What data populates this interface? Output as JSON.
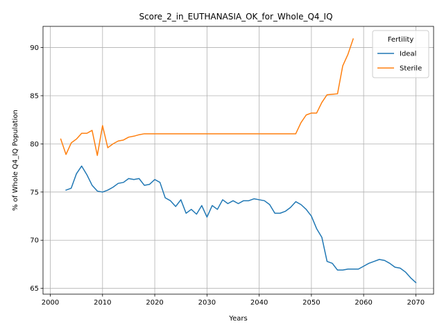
{
  "chart_data": {
    "type": "line",
    "title": "Score_2_in_EUTHANASIA_OK_for_Whole_Q4_IQ",
    "xlabel": "Years",
    "ylabel": "% of Whole Q4_IQ Population",
    "xlim": [
      1998.6,
      2073.4
    ],
    "ylim": [
      64.4,
      92.2
    ],
    "xticks": [
      2000,
      2010,
      2020,
      2030,
      2040,
      2050,
      2060,
      2070
    ],
    "yticks": [
      65,
      70,
      75,
      80,
      85,
      90
    ],
    "grid": true,
    "legend": {
      "title": "Fertility",
      "position": "top-right"
    },
    "series": [
      {
        "name": "Ideal",
        "color": "#1f77b4",
        "x": [
          2003,
          2004,
          2005,
          2006,
          2007,
          2008,
          2009,
          2010,
          2011,
          2012,
          2013,
          2014,
          2015,
          2016,
          2017,
          2018,
          2019,
          2020,
          2021,
          2022,
          2023,
          2024,
          2025,
          2026,
          2027,
          2028,
          2029,
          2030,
          2031,
          2032,
          2033,
          2034,
          2035,
          2036,
          2037,
          2038,
          2039,
          2040,
          2041,
          2042,
          2043,
          2044,
          2045,
          2046,
          2047,
          2048,
          2049,
          2050,
          2051,
          2052,
          2053,
          2054,
          2055,
          2056,
          2057,
          2058,
          2059,
          2060,
          2061,
          2062,
          2063,
          2064,
          2065,
          2066,
          2067,
          2068,
          2069,
          2070
        ],
        "values": [
          75.2,
          75.4,
          76.9,
          77.7,
          76.8,
          75.7,
          75.1,
          75.0,
          75.2,
          75.5,
          75.9,
          76.0,
          76.4,
          76.3,
          76.4,
          75.7,
          75.8,
          76.3,
          76.0,
          74.4,
          74.1,
          73.5,
          74.2,
          72.8,
          73.2,
          72.7,
          73.6,
          72.4,
          73.6,
          73.2,
          74.2,
          73.8,
          74.1,
          73.8,
          74.1,
          74.1,
          74.3,
          74.2,
          74.1,
          73.7,
          72.8,
          72.8,
          73.0,
          73.4,
          74.0,
          73.7,
          73.2,
          72.5,
          71.2,
          70.3,
          67.8,
          67.6,
          66.9,
          66.9,
          67.0,
          67.0,
          67.0,
          67.3,
          67.6,
          67.8,
          68.0,
          67.9,
          67.6,
          67.2,
          67.1,
          66.7,
          66.1,
          65.6
        ]
      },
      {
        "name": "Sterile",
        "color": "#ff7f0e",
        "x": [
          2002,
          2003,
          2004,
          2005,
          2006,
          2007,
          2008,
          2009,
          2010,
          2011,
          2012,
          2013,
          2014,
          2015,
          2016,
          2017,
          2018,
          2019,
          2020,
          2021,
          2022,
          2023,
          2024,
          2025,
          2026,
          2027,
          2028,
          2029,
          2030,
          2031,
          2032,
          2033,
          2034,
          2035,
          2036,
          2037,
          2038,
          2039,
          2040,
          2041,
          2042,
          2043,
          2044,
          2045,
          2046,
          2047,
          2048,
          2049,
          2050,
          2051,
          2052,
          2053,
          2054,
          2055,
          2056,
          2057,
          2058
        ],
        "values": [
          80.5,
          78.9,
          80.1,
          80.5,
          81.1,
          81.1,
          81.4,
          78.8,
          81.9,
          79.6,
          80.0,
          80.3,
          80.4,
          80.7,
          80.8,
          80.95,
          81.05,
          81.05,
          81.05,
          81.05,
          81.05,
          81.05,
          81.05,
          81.05,
          81.05,
          81.05,
          81.05,
          81.05,
          81.05,
          81.05,
          81.05,
          81.05,
          81.05,
          81.05,
          81.05,
          81.05,
          81.05,
          81.05,
          81.05,
          81.05,
          81.05,
          81.05,
          81.05,
          81.05,
          81.05,
          81.05,
          82.2,
          83.0,
          83.2,
          83.2,
          84.3,
          85.1,
          85.15,
          85.2,
          88.1,
          89.3,
          90.9
        ]
      }
    ]
  }
}
